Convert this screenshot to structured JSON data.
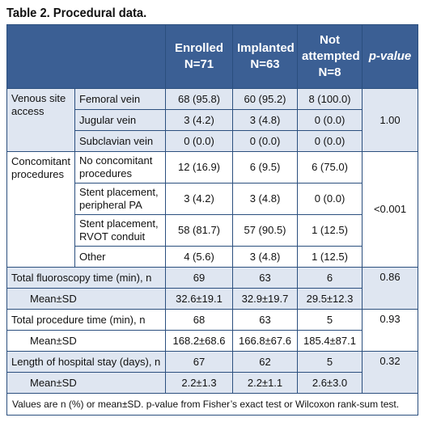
{
  "title": "Table 2. Procedural data.",
  "header": {
    "enrolled": "Enrolled\nN=71",
    "implanted": "Implanted\nN=63",
    "not_attempted": "Not\nattempted\nN=8",
    "pvalue": "p-value"
  },
  "venous": {
    "label": "Venous site access",
    "rows": [
      {
        "name": "Femoral vein",
        "enrolled": "68 (95.8)",
        "implanted": "60 (95.2)",
        "not_attempted": "8 (100.0)"
      },
      {
        "name": "Jugular vein",
        "enrolled": "3 (4.2)",
        "implanted": "3 (4.8)",
        "not_attempted": "0 (0.0)"
      },
      {
        "name": "Subclavian vein",
        "enrolled": "0 (0.0)",
        "implanted": "0 (0.0)",
        "not_attempted": "0 (0.0)"
      }
    ],
    "pvalue": "1.00"
  },
  "concomitant": {
    "label": "Concomitant procedures",
    "rows": [
      {
        "name": "No concomitant procedures",
        "enrolled": "12 (16.9)",
        "implanted": "6 (9.5)",
        "not_attempted": "6 (75.0)"
      },
      {
        "name": "Stent placement, peripheral PA",
        "enrolled": "3 (4.2)",
        "implanted": "3 (4.8)",
        "not_attempted": "0 (0.0)"
      },
      {
        "name": "Stent placement, RVOT conduit",
        "enrolled": "58 (81.7)",
        "implanted": "57 (90.5)",
        "not_attempted": "1 (12.5)"
      },
      {
        "name": "Other",
        "enrolled": "4 (5.6)",
        "implanted": "3 (4.8)",
        "not_attempted": "1 (12.5)"
      }
    ],
    "pvalue": "<0.001"
  },
  "fluoro": {
    "label": "Total fluoroscopy time (min), n",
    "n": {
      "enrolled": "69",
      "implanted": "63",
      "not_attempted": "6"
    },
    "pvalue": "0.86",
    "mean_label": "Mean±SD",
    "mean": {
      "enrolled": "32.6±19.1",
      "implanted": "32.9±19.7",
      "not_attempted": "29.5±12.3"
    }
  },
  "procedure": {
    "label": "Total procedure time (min), n",
    "n": {
      "enrolled": "68",
      "implanted": "63",
      "not_attempted": "5"
    },
    "pvalue": "0.93",
    "mean_label": "Mean±SD",
    "mean": {
      "enrolled": "168.2±68.6",
      "implanted": "166.8±67.6",
      "not_attempted": "185.4±87.1"
    }
  },
  "stay": {
    "label": "Length of hospital stay (days), n",
    "n": {
      "enrolled": "67",
      "implanted": "62",
      "not_attempted": "5"
    },
    "pvalue": "0.32",
    "mean_label": "Mean±SD",
    "mean": {
      "enrolled": "2.2±1.3",
      "implanted": "2.2±1.1",
      "not_attempted": "2.6±3.0"
    }
  },
  "footnote": "Values are n (%) or mean±SD. p-value from Fisher’s exact test or Wilcoxon rank-sum test.",
  "colors": {
    "header_bg": "#3b5f94",
    "shade": "#dfe6f1",
    "border": "#2b4f7e"
  }
}
